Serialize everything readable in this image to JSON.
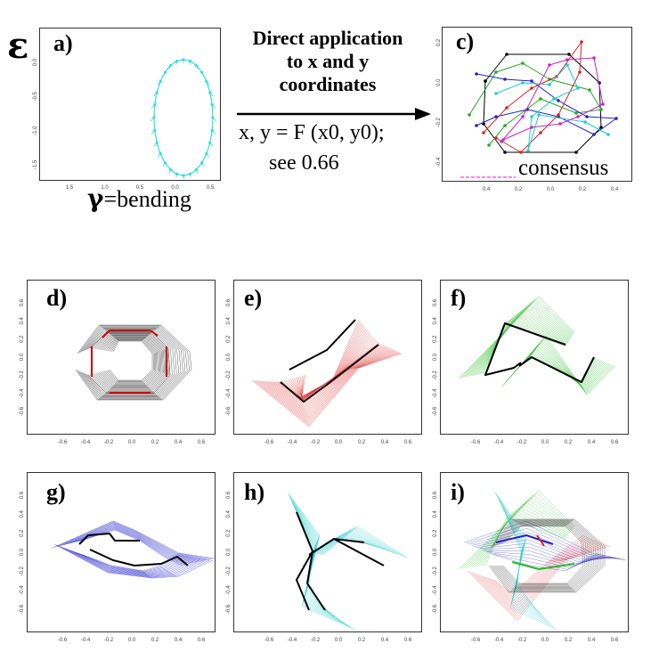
{
  "symbols": {
    "epsilon": "ε",
    "gamma": "γ"
  },
  "captions": {
    "bending": "=bending",
    "direct_line1": "Direct application",
    "direct_line2": "to x and y",
    "direct_line3": "coordinates",
    "formula": "x, y = F (x0, y0);",
    "see": "see  0.66",
    "consensus": "consensus"
  },
  "panels": {
    "a": {
      "label": "a)",
      "color": "#33dddd"
    },
    "c": {
      "label": "c)"
    },
    "d": {
      "label": "d)",
      "color": "#222222",
      "accent": "#cc0000"
    },
    "e": {
      "label": "e)",
      "color": "#dd2222"
    },
    "f": {
      "label": "f)",
      "color": "#22bb22"
    },
    "g": {
      "label": "g)",
      "color": "#2222cc"
    },
    "h": {
      "label": "h)",
      "color": "#22cccc"
    },
    "i": {
      "label": "i)"
    }
  },
  "ticks": {
    "a_x": [
      "1.5",
      "1.0",
      "0.5",
      "0.0",
      "0.5"
    ],
    "a_y": [
      "0.0",
      "-0.5",
      "-1.0",
      "-1.5"
    ],
    "c_x": [
      "0.4",
      "0.2",
      "0.0",
      "0.2",
      "0.4"
    ],
    "c_y": [
      "0.2",
      "0.0",
      "-0.2",
      "-0.4"
    ],
    "grid_x": [
      "-0.6",
      "-0.4",
      "-0.2",
      "0.0",
      "0.2",
      "0.4",
      "0.6"
    ],
    "grid_y": [
      "0.6",
      "0.4",
      "0.2",
      "0.0",
      "-0.2",
      "-0.4",
      "-0.6"
    ]
  }
}
